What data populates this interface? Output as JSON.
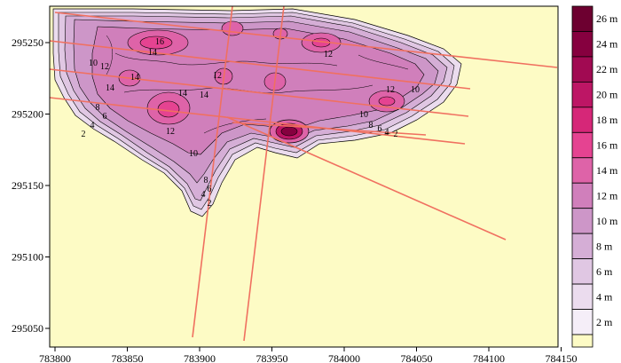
{
  "map": {
    "x_axis": {
      "ticks": [
        "783800",
        "783850",
        "783900",
        "783950",
        "784000",
        "784050",
        "784100",
        "784150"
      ]
    },
    "y_axis": {
      "ticks": [
        "295250",
        "295200",
        "295150",
        "295100",
        "295050"
      ]
    },
    "colors": {
      "background": "#fdfbc5",
      "frame": "#000000",
      "transect_lines": "#f07060",
      "contour_lines": "#000000"
    },
    "contour_labels": [
      "14",
      "10",
      "12",
      "14",
      "16",
      "14",
      "12",
      "10",
      "12",
      "14",
      "14",
      "12",
      "10",
      "8",
      "6",
      "4",
      "2",
      "12",
      "10",
      "8",
      "6",
      "4",
      "2",
      "8",
      "6",
      "4",
      "2"
    ]
  },
  "legend": {
    "entries": [
      {
        "label": "26 m",
        "color": "#6d0030"
      },
      {
        "label": "24 m",
        "color": "#86003f"
      },
      {
        "label": "22 m",
        "color": "#a10a52"
      },
      {
        "label": "20 m",
        "color": "#bd1665"
      },
      {
        "label": "18 m",
        "color": "#d62778"
      },
      {
        "label": "16 m",
        "color": "#e54391"
      },
      {
        "label": "14 m",
        "color": "#de63a8"
      },
      {
        "label": "12 m",
        "color": "#d07fbb"
      },
      {
        "label": "10 m",
        "color": "#cd96c8"
      },
      {
        "label": "8 m",
        "color": "#d5aed6"
      },
      {
        "label": "6 m",
        "color": "#e0c7e3"
      },
      {
        "label": "4 m",
        "color": "#ebdcee"
      },
      {
        "label": "2 m",
        "color": "#f5eef8"
      },
      {
        "label": "",
        "color": "#fdfbc5"
      }
    ]
  }
}
